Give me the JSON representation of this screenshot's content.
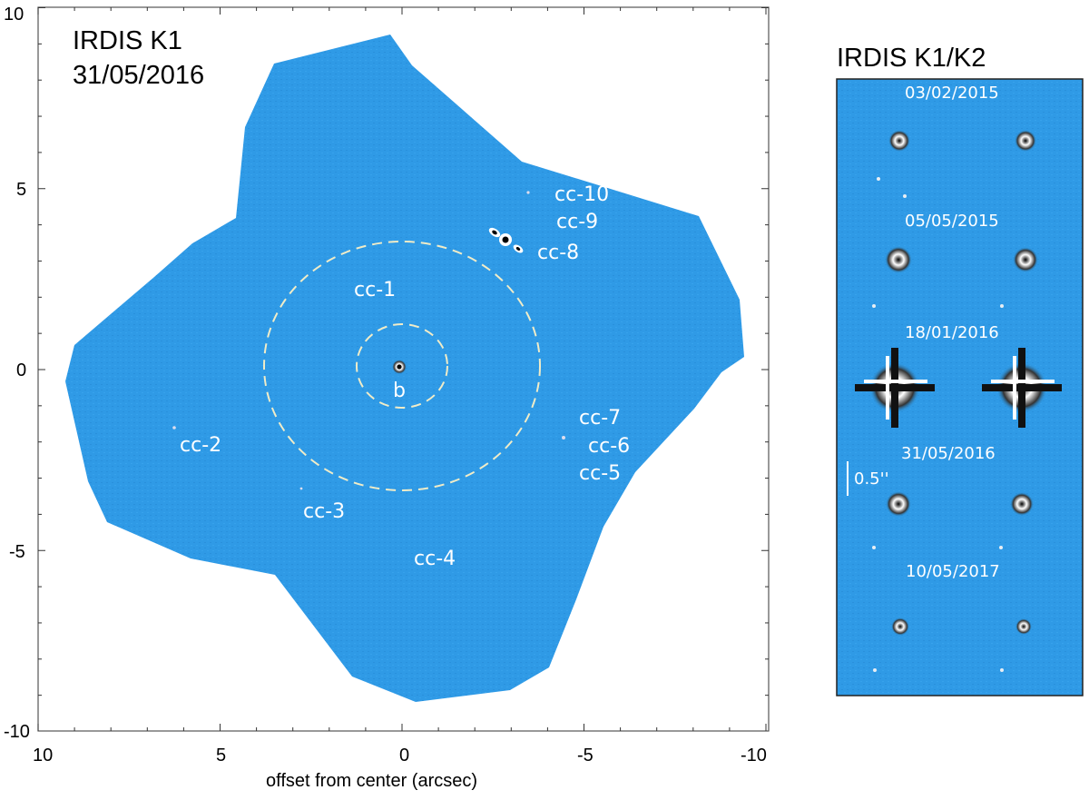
{
  "main_panel": {
    "title_line1": "IRDIS K1",
    "title_line2": "31/05/2016",
    "x_axis_label": "offset from center (arcsec)",
    "x_ticks": [
      "10",
      "5",
      "0",
      "-5",
      "-10"
    ],
    "y_ticks": [
      "10",
      "5",
      "0",
      "-5",
      "-10"
    ],
    "field_color": "#2f9ae6",
    "objects": [
      {
        "id": "b",
        "label": "b"
      },
      {
        "id": "cc-1",
        "label": "cc-1"
      },
      {
        "id": "cc-2",
        "label": "cc-2"
      },
      {
        "id": "cc-3",
        "label": "cc-3"
      },
      {
        "id": "cc-4",
        "label": "cc-4"
      },
      {
        "id": "cc-5",
        "label": "cc-5"
      },
      {
        "id": "cc-6",
        "label": "cc-6"
      },
      {
        "id": "cc-7",
        "label": "cc-7"
      },
      {
        "id": "cc-8",
        "label": "cc-8"
      },
      {
        "id": "cc-9",
        "label": "cc-9"
      },
      {
        "id": "cc-10",
        "label": "cc-10"
      }
    ]
  },
  "side_panel": {
    "title": "IRDIS K1/K2",
    "scale_bar_label": "0.5''",
    "epochs": [
      "03/02/2015",
      "05/05/2015",
      "18/01/2016",
      "31/05/2016",
      "10/05/2017"
    ]
  }
}
